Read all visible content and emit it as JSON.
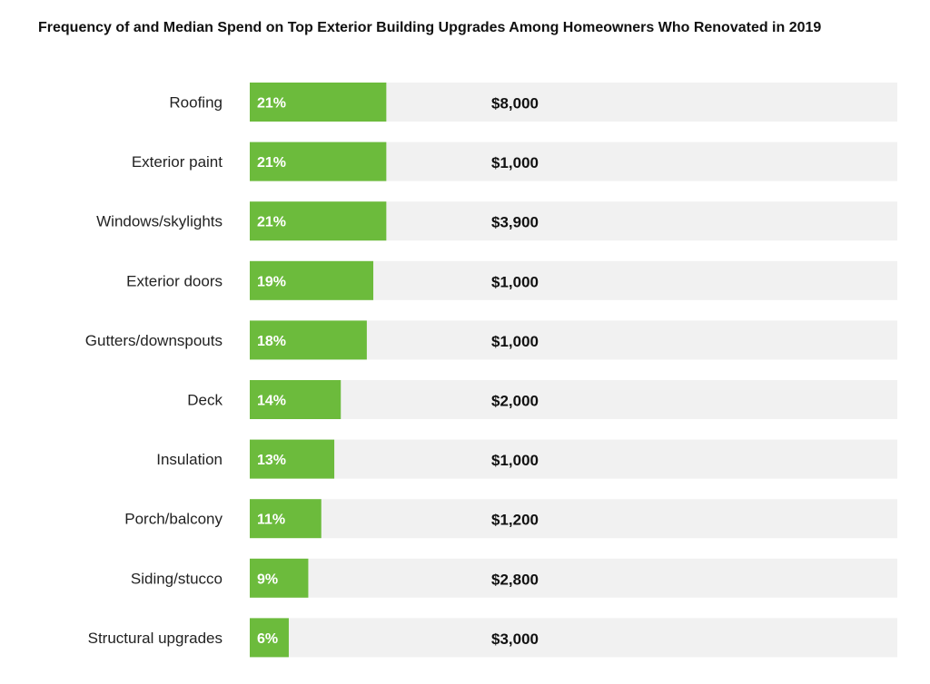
{
  "colors": {
    "bar": "#6cbb3c",
    "track": "#f1f1f1",
    "bar_label": "#ffffff",
    "category_label": "#222222",
    "spend_label": "#111111"
  },
  "chart_data": {
    "type": "bar",
    "orientation": "horizontal",
    "title": "Frequency of and Median Spend on Top Exterior Building Upgrades Among Homeowners Who Renovated in 2019",
    "xlabel": "",
    "ylabel": "",
    "grid": false,
    "legend": "none",
    "xlim": [
      0,
      100
    ],
    "categories": [
      "Roofing",
      "Exterior paint",
      "Windows/skylights",
      "Exterior doors",
      "Gutters/downspouts",
      "Deck",
      "Insulation",
      "Porch/balcony",
      "Siding/stucco",
      "Structural upgrades"
    ],
    "series": [
      {
        "values": [
          21,
          21,
          21,
          19,
          18,
          14,
          13,
          11,
          9,
          6
        ],
        "labels": [
          "21%",
          "21%",
          "21%",
          "19%",
          "18%",
          "14%",
          "13%",
          "11%",
          "9%",
          "6%"
        ]
      }
    ],
    "median_spend": [
      "$8,000",
      "$1,000",
      "$3,900",
      "$1,000",
      "$1,000",
      "$2,000",
      "$1,000",
      "$1,200",
      "$2,800",
      "$3,000"
    ]
  }
}
